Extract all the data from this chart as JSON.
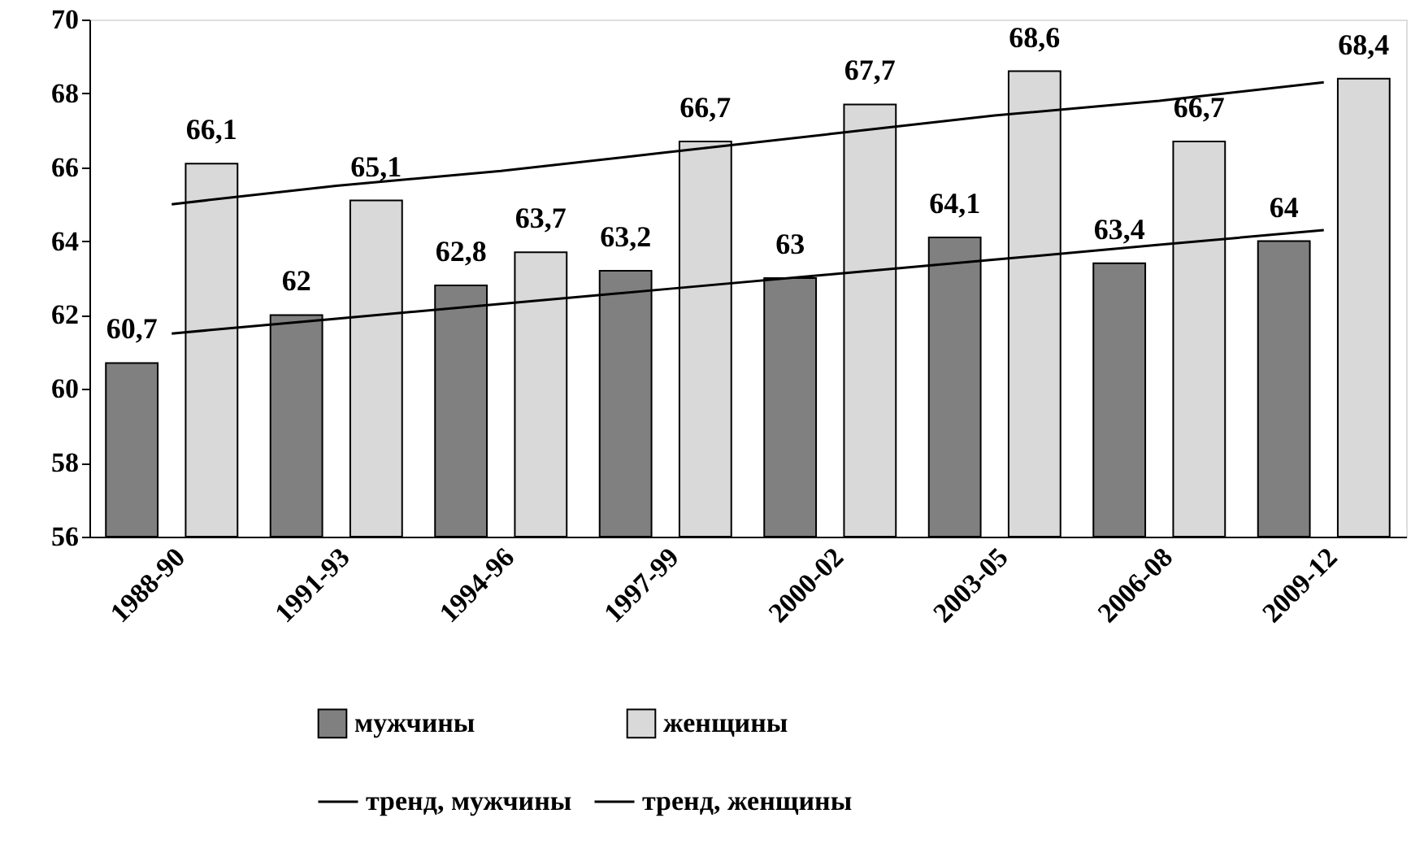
{
  "chart_data": {
    "type": "bar",
    "categories": [
      "1988-90",
      "1991-93",
      "1994-96",
      "1997-99",
      "2000-02",
      "2003-05",
      "2006-08",
      "2009-12"
    ],
    "series": [
      {
        "name": "мужчины",
        "color": "#808080",
        "values": [
          60.7,
          62,
          62.8,
          63.2,
          63,
          64.1,
          63.4,
          64
        ],
        "value_labels": [
          "60,7",
          "62",
          "62,8",
          "63,2",
          "63",
          "64,1",
          "63,4",
          "64"
        ]
      },
      {
        "name": "женщины",
        "color": "#d9d9d9",
        "values": [
          66.1,
          65.1,
          63.7,
          66.7,
          67.7,
          68.6,
          66.7,
          68.4
        ],
        "value_labels": [
          "66,1",
          "65,1",
          "63,7",
          "66,7",
          "67,7",
          "68,6",
          "66,7",
          "68,4"
        ]
      },
      {
        "name": "тренд, мужчины",
        "type": "line",
        "color": "#000000",
        "values": [
          61.5,
          61.9,
          62.3,
          62.7,
          63.1,
          63.5,
          63.9,
          64.3
        ]
      },
      {
        "name": "тренд, женщины",
        "type": "line",
        "color": "#000000",
        "values": [
          65.0,
          65.5,
          65.9,
          66.4,
          66.9,
          67.4,
          67.8,
          68.3
        ]
      }
    ],
    "ylim": [
      56,
      70
    ],
    "yticks": [
      56,
      58,
      60,
      62,
      64,
      66,
      68,
      70
    ],
    "grid": false,
    "legend": "bottom"
  }
}
